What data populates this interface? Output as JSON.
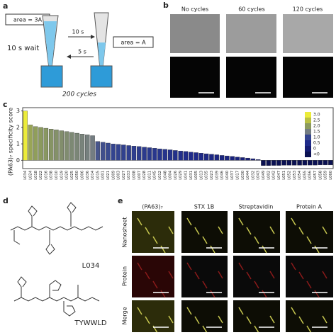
{
  "panels": {
    "a": {
      "label": "a",
      "area_large": "area = 3A",
      "forward_time": "10 s",
      "back_time": "5 s",
      "area_small": "area = A",
      "wait": "10 s wait",
      "cycles": "200 cycles"
    },
    "b": {
      "label": "b",
      "columns": [
        "No cycles",
        "60 cycles",
        "120 cycles"
      ]
    },
    "c": {
      "label": "c"
    },
    "d": {
      "label": "d",
      "structures": [
        "L034",
        "TYWWLD"
      ]
    },
    "e": {
      "label": "e",
      "columns": [
        "(PA63)₇",
        "STX 1B",
        "Streptavidin",
        "Protein A"
      ],
      "rows": [
        "Nanosheet",
        "Protein",
        "Merge"
      ]
    }
  },
  "chart_data": {
    "type": "bar",
    "y_label": "(PA63)₇ specificity score",
    "categories": [
      "L034",
      "L024",
      "L018",
      "L022",
      "L016",
      "L038",
      "L010",
      "L019",
      "L020",
      "L025",
      "L050",
      "L006",
      "L036",
      "L014",
      "L015",
      "L001",
      "L021",
      "L009",
      "L003",
      "L027",
      "L033",
      "L008",
      "L007",
      "L028",
      "L011",
      "L045",
      "L012",
      "L048",
      "L004",
      "L026",
      "L029",
      "L041",
      "L031",
      "L005",
      "L013",
      "L035",
      "L023",
      "L039",
      "L046",
      "L040",
      "L037",
      "L017",
      "L030",
      "L044",
      "L032",
      "L043",
      "L049",
      "L002",
      "L042",
      "L047",
      "L051",
      "L052",
      "L053",
      "L054",
      "L055",
      "L056",
      "L057",
      "L058",
      "L059",
      "L060"
    ],
    "values": [
      3.0,
      2.15,
      2.05,
      2.0,
      1.95,
      1.9,
      1.85,
      1.8,
      1.75,
      1.7,
      1.65,
      1.6,
      1.55,
      1.5,
      1.15,
      1.1,
      1.05,
      1.0,
      0.97,
      0.94,
      0.9,
      0.87,
      0.84,
      0.8,
      0.77,
      0.74,
      0.7,
      0.67,
      0.64,
      0.6,
      0.57,
      0.54,
      0.5,
      0.47,
      0.44,
      0.4,
      0.37,
      0.34,
      0.3,
      0.27,
      0.24,
      0.2,
      0.17,
      0.14,
      0.1,
      0.05,
      -0.32,
      -0.32,
      -0.31,
      -0.31,
      -0.3,
      -0.3,
      -0.3,
      -0.3,
      -0.29,
      -0.29,
      -0.29,
      -0.28,
      -0.28,
      -0.28
    ],
    "ylim": [
      -0.5,
      3.2
    ],
    "yticks": [
      0,
      1,
      2,
      3
    ],
    "colorbar": {
      "ticks": [
        {
          "value": 3,
          "label": "3.0"
        },
        {
          "value": 2.5,
          "label": "2.5"
        },
        {
          "value": 2,
          "label": "2.0"
        },
        {
          "value": 1.5,
          "label": "1.5"
        },
        {
          "value": 1,
          "label": "1.0"
        },
        {
          "value": 0.5,
          "label": "0.5"
        },
        0,
        {
          "value": -0.5,
          "label": "<0"
        }
      ],
      "colors": [
        "#ecec3a",
        "#b9c043",
        "#8b9a5e",
        "#747d82",
        "#34448f",
        "#1f2b8a",
        "#151c72",
        "#0b1152"
      ]
    }
  }
}
